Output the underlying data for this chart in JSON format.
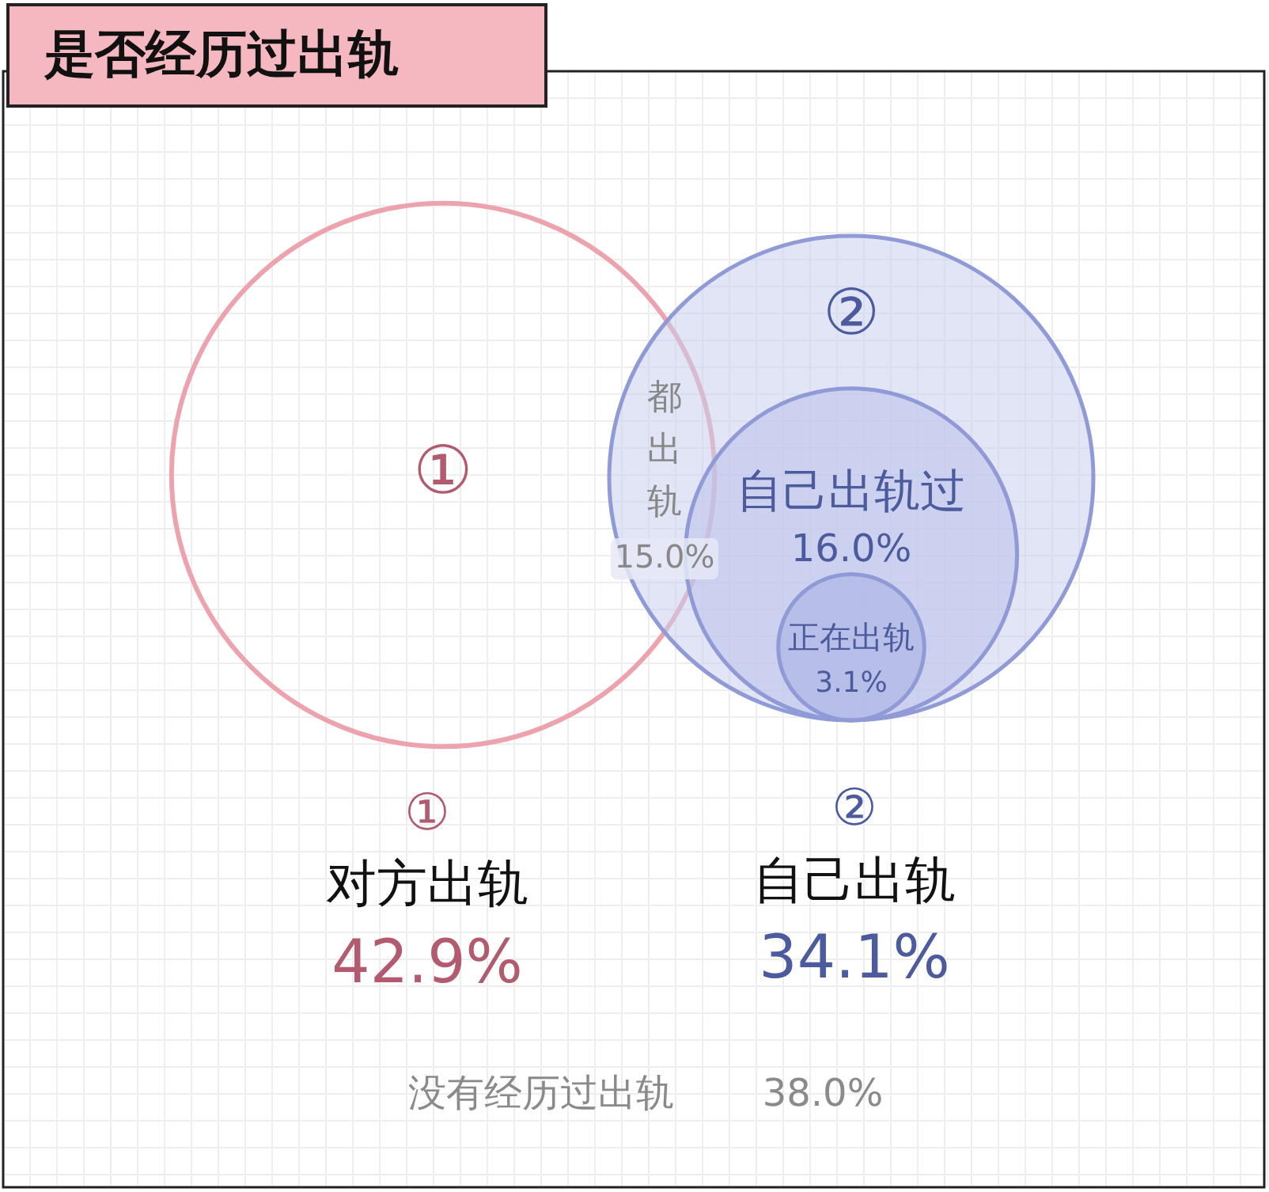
{
  "chart_data": {
    "type": "other",
    "title": "是否经历过出轨",
    "categories": [
      "对方出轨",
      "自己出轨",
      "都出轨",
      "自己出轨过",
      "正在出轨",
      "没有经历过出轨"
    ],
    "values": [
      42.9,
      34.1,
      15.0,
      16.0,
      3.1,
      38.0
    ],
    "value_labels": [
      "42.9%",
      "34.1%",
      "15.0%",
      "16.0%",
      "3.1%",
      "38.0%"
    ],
    "annotations": [
      "①",
      "②",
      "①",
      "②"
    ]
  }
}
